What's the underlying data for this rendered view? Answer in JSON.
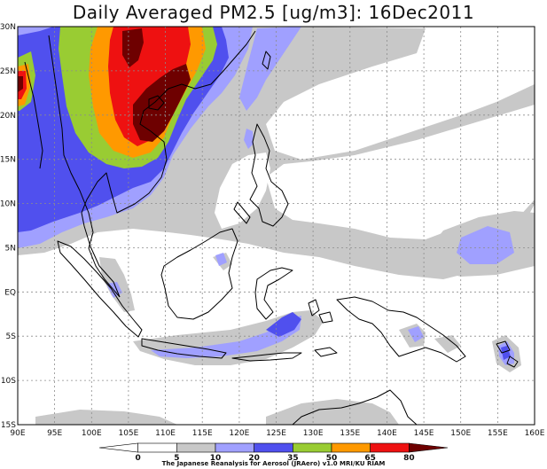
{
  "title": "Daily Averaged PM2.5 [ug/m3]: 16Dec2011",
  "lat_labels": [
    "30N",
    "25N",
    "20N",
    "15N",
    "10N",
    "5N",
    "EQ",
    "5S",
    "10S",
    "15S"
  ],
  "lon_labels": [
    "90E",
    "95E",
    "100E",
    "105E",
    "110E",
    "115E",
    "120E",
    "125E",
    "130E",
    "135E",
    "140E",
    "145E",
    "150E",
    "155E",
    "160E"
  ],
  "legend": {
    "levels": [
      "0",
      "5",
      "10",
      "20",
      "35",
      "50",
      "65",
      "80"
    ],
    "colors": [
      "#ffffff",
      "#ffffff",
      "#c8c8c8",
      "#a0a0ff",
      "#5050ee",
      "#99cc33",
      "#ff9900",
      "#ee1111",
      "#6e0000"
    ]
  },
  "credit": "The Japanese Reanalysis for Aerosol (JRAero) v1.0 MRI/KU RIAM"
}
